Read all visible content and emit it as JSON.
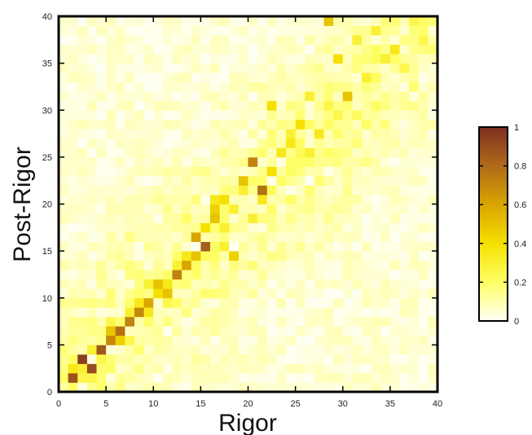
{
  "chart_data": {
    "type": "heatmap",
    "title": "",
    "xlabel": "Rigor",
    "ylabel": "Post-Rigor",
    "xlim": [
      0,
      40
    ],
    "ylim": [
      0,
      40
    ],
    "x_ticks": [
      "0",
      "5",
      "10",
      "15",
      "20",
      "25",
      "30",
      "35",
      "40"
    ],
    "y_ticks": [
      "0",
      "5",
      "10",
      "15",
      "20",
      "25",
      "30",
      "35",
      "40"
    ],
    "grid_size": 40,
    "colorbar": {
      "range": [
        0,
        1
      ],
      "ticks": [
        "0",
        "0.2",
        "0.4",
        "0.6",
        "0.8",
        "1"
      ],
      "colors": [
        "#fffff5",
        "#ffff66",
        "#f5e000",
        "#d9a500",
        "#b06a1a",
        "#7e2f22"
      ]
    },
    "highlight_cells": [
      {
        "x": 1,
        "y": 1,
        "v": 0.88
      },
      {
        "x": 2,
        "y": 3,
        "v": 0.95
      },
      {
        "x": 3,
        "y": 2,
        "v": 0.9
      },
      {
        "x": 1,
        "y": 2,
        "v": 0.35
      },
      {
        "x": 2,
        "y": 2,
        "v": 0.3
      },
      {
        "x": 3,
        "y": 1,
        "v": 0.25
      },
      {
        "x": 0,
        "y": 1,
        "v": 0.2
      },
      {
        "x": 2,
        "y": 1,
        "v": 0.25
      },
      {
        "x": 1,
        "y": 3,
        "v": 0.2
      },
      {
        "x": 4,
        "y": 4,
        "v": 0.86
      },
      {
        "x": 3,
        "y": 4,
        "v": 0.3
      },
      {
        "x": 4,
        "y": 3,
        "v": 0.25
      },
      {
        "x": 5,
        "y": 5,
        "v": 0.7
      },
      {
        "x": 5,
        "y": 6,
        "v": 0.5
      },
      {
        "x": 6,
        "y": 5,
        "v": 0.45
      },
      {
        "x": 6,
        "y": 6,
        "v": 0.78
      },
      {
        "x": 7,
        "y": 7,
        "v": 0.72
      },
      {
        "x": 7,
        "y": 8,
        "v": 0.3
      },
      {
        "x": 8,
        "y": 8,
        "v": 0.7
      },
      {
        "x": 9,
        "y": 9,
        "v": 0.6
      },
      {
        "x": 8,
        "y": 9,
        "v": 0.35
      },
      {
        "x": 9,
        "y": 8,
        "v": 0.35
      },
      {
        "x": 10,
        "y": 11,
        "v": 0.5
      },
      {
        "x": 11,
        "y": 10,
        "v": 0.5
      },
      {
        "x": 10,
        "y": 10,
        "v": 0.4
      },
      {
        "x": 9,
        "y": 11,
        "v": 0.3
      },
      {
        "x": 12,
        "y": 12,
        "v": 0.72
      },
      {
        "x": 11,
        "y": 11,
        "v": 0.35
      },
      {
        "x": 13,
        "y": 13,
        "v": 0.6
      },
      {
        "x": 12,
        "y": 13,
        "v": 0.3
      },
      {
        "x": 14,
        "y": 14,
        "v": 0.5
      },
      {
        "x": 13,
        "y": 14,
        "v": 0.35
      },
      {
        "x": 14,
        "y": 16,
        "v": 0.6
      },
      {
        "x": 15,
        "y": 15,
        "v": 0.84
      },
      {
        "x": 15,
        "y": 17,
        "v": 0.4
      },
      {
        "x": 16,
        "y": 18,
        "v": 0.5
      },
      {
        "x": 16,
        "y": 19,
        "v": 0.45
      },
      {
        "x": 17,
        "y": 20,
        "v": 0.4
      },
      {
        "x": 16,
        "y": 20,
        "v": 0.35
      },
      {
        "x": 17,
        "y": 17,
        "v": 0.3
      },
      {
        "x": 18,
        "y": 14,
        "v": 0.45
      },
      {
        "x": 17,
        "y": 15,
        "v": 0.3
      },
      {
        "x": 19,
        "y": 22,
        "v": 0.5
      },
      {
        "x": 20,
        "y": 24,
        "v": 0.72
      },
      {
        "x": 21,
        "y": 21,
        "v": 0.78
      },
      {
        "x": 21,
        "y": 20,
        "v": 0.35
      },
      {
        "x": 22,
        "y": 23,
        "v": 0.4
      },
      {
        "x": 23,
        "y": 25,
        "v": 0.35
      },
      {
        "x": 24,
        "y": 26,
        "v": 0.35
      },
      {
        "x": 25,
        "y": 28,
        "v": 0.4
      },
      {
        "x": 22,
        "y": 30,
        "v": 0.4
      },
      {
        "x": 27,
        "y": 27,
        "v": 0.35
      },
      {
        "x": 28,
        "y": 39,
        "v": 0.5
      },
      {
        "x": 30,
        "y": 31,
        "v": 0.5
      },
      {
        "x": 29,
        "y": 35,
        "v": 0.4
      },
      {
        "x": 26,
        "y": 31,
        "v": 0.3
      },
      {
        "x": 32,
        "y": 33,
        "v": 0.3
      },
      {
        "x": 33,
        "y": 38,
        "v": 0.3
      },
      {
        "x": 35,
        "y": 36,
        "v": 0.35
      },
      {
        "x": 31,
        "y": 37,
        "v": 0.3
      },
      {
        "x": 34,
        "y": 35,
        "v": 0.3
      },
      {
        "x": 37,
        "y": 39,
        "v": 0.25
      },
      {
        "x": 24,
        "y": 27,
        "v": 0.3
      },
      {
        "x": 26,
        "y": 25,
        "v": 0.3
      },
      {
        "x": 20,
        "y": 18,
        "v": 0.3
      },
      {
        "x": 19,
        "y": 21,
        "v": 0.3
      },
      {
        "x": 18,
        "y": 19,
        "v": 0.3
      },
      {
        "x": 28,
        "y": 30,
        "v": 0.25
      },
      {
        "x": 29,
        "y": 29,
        "v": 0.25
      },
      {
        "x": 38,
        "y": 37,
        "v": 0.25
      },
      {
        "x": 36,
        "y": 34,
        "v": 0.25
      },
      {
        "x": 11,
        "y": 9,
        "v": 0.25
      },
      {
        "x": 7,
        "y": 5,
        "v": 0.25
      },
      {
        "x": 5,
        "y": 7,
        "v": 0.25
      },
      {
        "x": 14,
        "y": 12,
        "v": 0.2
      },
      {
        "x": 12,
        "y": 14,
        "v": 0.2
      },
      {
        "x": 23,
        "y": 22,
        "v": 0.2
      },
      {
        "x": 25,
        "y": 24,
        "v": 0.2
      }
    ]
  }
}
